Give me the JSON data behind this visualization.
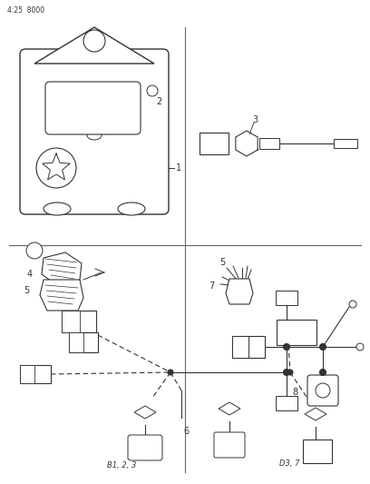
{
  "bg_color": "#ffffff",
  "line_color": "#333333",
  "divider_color": "#666666",
  "label_color": "#333333",
  "page_ref": "4:25  8000",
  "figsize": [
    4.08,
    5.33
  ],
  "dpi": 100
}
